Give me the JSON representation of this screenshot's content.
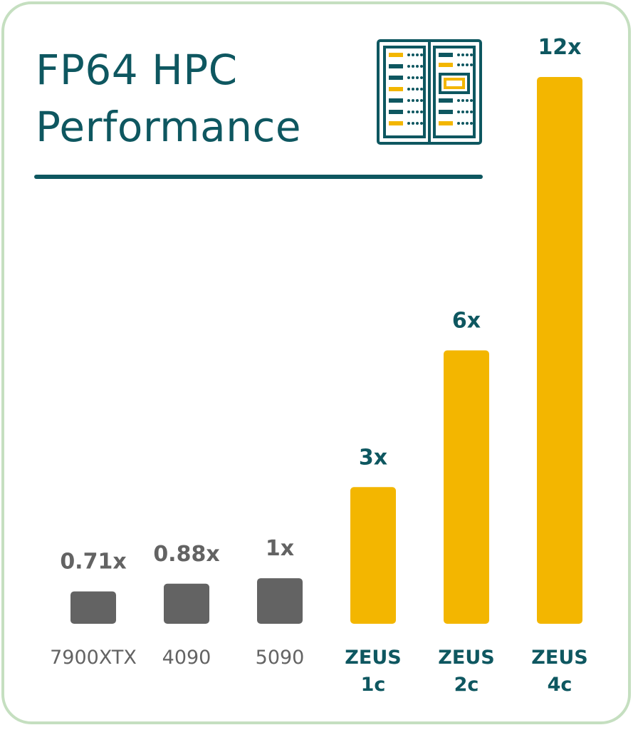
{
  "title_line1": "FP64 HPC",
  "title_line2": "Performance",
  "colors": {
    "accent": "#0e5760",
    "highlight": "#f3b600",
    "baseline_bar": "#636363",
    "baseline_text": "#636363",
    "border": "#c5dfc0"
  },
  "icons": {
    "header": "server-rack-icon"
  },
  "chart_data": {
    "type": "bar",
    "title": "FP64 HPC Performance",
    "xlabel": "",
    "ylabel": "",
    "ylim": [
      0,
      12
    ],
    "grid": false,
    "categories": [
      "7900XTX",
      "4090",
      "5090",
      "ZEUS 1c",
      "ZEUS 2c",
      "ZEUS 4c"
    ],
    "category_lines": [
      [
        "7900XTX"
      ],
      [
        "4090"
      ],
      [
        "5090"
      ],
      [
        "ZEUS",
        "1c"
      ],
      [
        "ZEUS",
        "2c"
      ],
      [
        "ZEUS",
        "4c"
      ]
    ],
    "values": [
      0.71,
      0.88,
      1,
      3,
      6,
      12
    ],
    "value_labels": [
      "0.71x",
      "0.88x",
      "1x",
      "3x",
      "6x",
      "12x"
    ],
    "highlight": [
      false,
      false,
      false,
      true,
      true,
      true
    ]
  }
}
